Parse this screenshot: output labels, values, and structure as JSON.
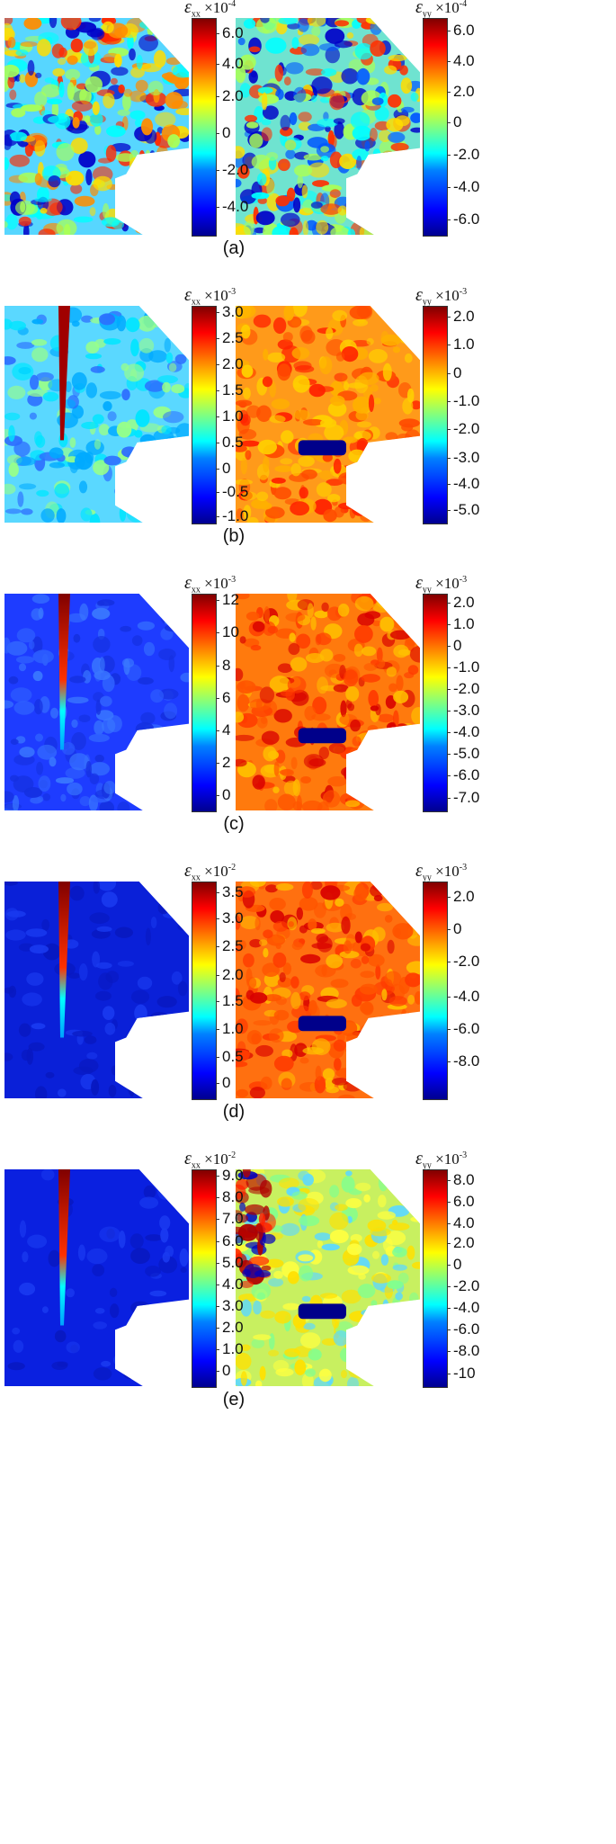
{
  "units": {
    "exx_symbol": "ε",
    "exx_sub": "xx",
    "eyy_symbol": "ε",
    "eyy_sub": "yy",
    "multiplier": "×10"
  },
  "panels": [
    {
      "caption": "(a)",
      "exx": {
        "exponent": "-4",
        "ticks": [
          "6.0",
          "4.0",
          "2.0",
          "0",
          "-2.0",
          "-4.0"
        ]
      },
      "eyy": {
        "exponent": "-4",
        "ticks": [
          "6.0",
          "4.0",
          "2.0",
          "0",
          "-2.0",
          "-4.0",
          "-6.0"
        ]
      }
    },
    {
      "caption": "(b)",
      "exx": {
        "exponent": "-3",
        "ticks": [
          "3.0",
          "2.5",
          "2.0",
          "1.5",
          "1.0",
          "0.5",
          "0",
          "-0.5",
          "-1.0"
        ]
      },
      "eyy": {
        "exponent": "-3",
        "ticks": [
          "2.0",
          "1.0",
          "0",
          "-1.0",
          "-2.0",
          "-3.0",
          "-4.0",
          "-5.0"
        ]
      }
    },
    {
      "caption": "(c)",
      "exx": {
        "exponent": "-3",
        "ticks": [
          "12",
          "10",
          "8",
          "6",
          "4",
          "2",
          "0"
        ]
      },
      "eyy": {
        "exponent": "-3",
        "ticks": [
          "2.0",
          "1.0",
          "0",
          "-1.0",
          "-2.0",
          "-3.0",
          "-4.0",
          "-5.0",
          "-6.0",
          "-7.0"
        ]
      }
    },
    {
      "caption": "(d)",
      "exx": {
        "exponent": "-2",
        "ticks": [
          "3.5",
          "3.0",
          "2.5",
          "2.0",
          "1.5",
          "1.0",
          "0.5",
          "0"
        ]
      },
      "eyy": {
        "exponent": "-3",
        "ticks": [
          "2.0",
          "0",
          "-2.0",
          "-4.0",
          "-6.0",
          "-8.0"
        ]
      }
    },
    {
      "caption": "(e)",
      "exx": {
        "exponent": "-2",
        "ticks": [
          "9.0",
          "8.0",
          "7.0",
          "6.0",
          "5.0",
          "4.0",
          "3.0",
          "2.0",
          "1.0",
          "0"
        ]
      },
      "eyy": {
        "exponent": "-3",
        "ticks": [
          "8.0",
          "6.0",
          "4.0",
          "2.0",
          "0",
          "-2.0",
          "-4.0",
          "-6.0",
          "-8.0",
          "-10"
        ]
      }
    }
  ]
}
